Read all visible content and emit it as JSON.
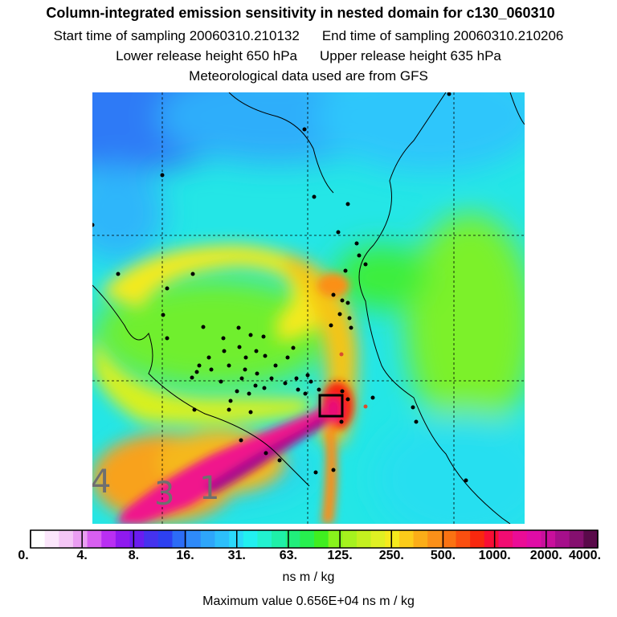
{
  "header": {
    "title": "Column-integrated emission sensitivity in nested domain for c130_060310",
    "start_label": "Start time of sampling 20060310.210132",
    "end_label": "End time of sampling 20060310.210206",
    "lower_label": "Lower release height  650 hPa",
    "upper_label": "Upper release height  635 hPa",
    "met_label": "Meteorological data used are from GFS"
  },
  "region_labels": [
    "4",
    "3",
    "1"
  ],
  "colorbar": {
    "ticks": [
      "0.",
      "4.",
      "8.",
      "16.",
      "31.",
      "63.",
      "125.",
      "250.",
      "500.",
      "1000.",
      "2000.",
      "4000."
    ],
    "colors": [
      "#ffffff",
      "#fbe6fb",
      "#f4c6f6",
      "#ea9df2",
      "#d85ff0",
      "#b92ff2",
      "#8f1aef",
      "#6a1cf0",
      "#4532ee",
      "#2d40f0",
      "#2c6cf6",
      "#2f8af9",
      "#2ea6fa",
      "#2dbffb",
      "#2bd9fa",
      "#22f0f0",
      "#22f2cf",
      "#1ff0a8",
      "#21ee7c",
      "#27ef4f",
      "#40ee20",
      "#88f21c",
      "#a6f21e",
      "#c4f01f",
      "#e0f023",
      "#f6ea1d",
      "#fccc1a",
      "#fbad18",
      "#fb9019",
      "#fa7212",
      "#fa4f10",
      "#f8280e",
      "#f80e35",
      "#f20c72",
      "#eb0c96",
      "#e00ca6",
      "#c90f9c",
      "#a60f8b",
      "#85106f",
      "#5a0a4a"
    ],
    "units": "ns m / kg"
  },
  "footer": {
    "max_value": "Maximum value  0.656E+04 ns m / kg"
  },
  "colors": {
    "plume_core": "#c0126f",
    "plume": "#f0138c",
    "background_low": "#2a8cf5",
    "background_mid": "#22ecea",
    "background_green": "#9df035",
    "background_yellow": "#f6e21a",
    "background_orange": "#fba21b",
    "receptor_box": "#000000"
  }
}
